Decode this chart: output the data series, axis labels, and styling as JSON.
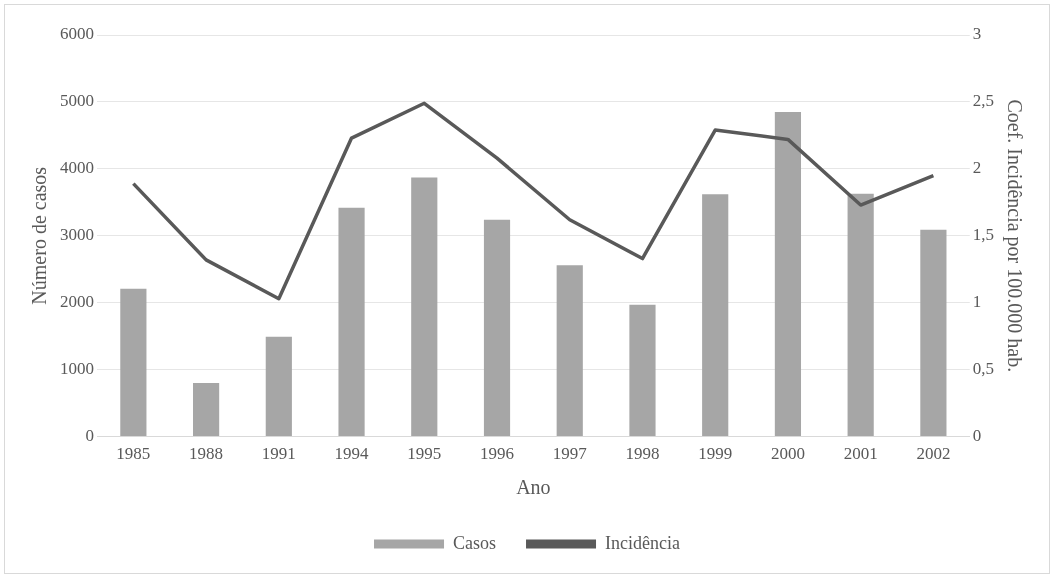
{
  "chart_data": {
    "type": "bar",
    "xlabel": "Ano",
    "ylabel": "Número de casos",
    "y2label": "Coef. Incidência por 100.000 hab.",
    "categories": [
      "1985",
      "1988",
      "1991",
      "1994",
      "1995",
      "1996",
      "1997",
      "1998",
      "1999",
      "2000",
      "2001",
      "2002"
    ],
    "series": [
      {
        "name": "Casos",
        "color": "#a6a6a6",
        "values": [
          2210,
          800,
          1490,
          3420,
          3870,
          3240,
          2560,
          1970,
          3620,
          4850,
          3630,
          3090
        ]
      },
      {
        "name": "Incidência",
        "type": "line",
        "axis": "y2",
        "color": "#595959",
        "values": [
          1.89,
          1.32,
          1.03,
          2.23,
          2.49,
          2.08,
          1.62,
          1.33,
          2.29,
          2.22,
          1.73,
          1.95
        ]
      }
    ],
    "ylim": [
      0,
      6000
    ],
    "yticks": [
      0,
      1000,
      2000,
      3000,
      4000,
      5000,
      6000
    ],
    "y2lim": [
      0,
      3
    ],
    "y2ticks": [
      0,
      {
        "value": 0.5,
        "label": "0,5"
      },
      1,
      {
        "value": 1.5,
        "label": "1,5"
      },
      2,
      {
        "value": 2.5,
        "label": "2,5"
      },
      3
    ],
    "grid": "y",
    "legend": "bottom",
    "marker": "none",
    "line_style": "solid"
  }
}
